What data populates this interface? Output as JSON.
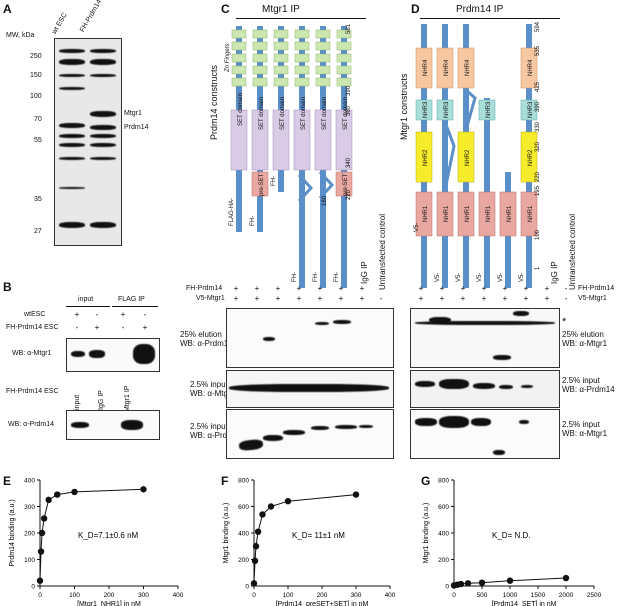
{
  "panels": {
    "A": {
      "letter": "A",
      "mw_label": "MW, kDa",
      "lane_labels": [
        "wt ESC",
        "FH-Prdm14 ESC"
      ],
      "markers": [
        "250",
        "150",
        "100",
        "70",
        "55",
        "35",
        "27"
      ],
      "band_labels": [
        "Mtgr1",
        "Prdm14"
      ]
    },
    "B": {
      "letter": "B",
      "group_input": "input",
      "group_ip": "FLAG IP",
      "row_wt": "wtESC",
      "row_fh": "FH-Prdm14 ESC",
      "signs_wt": [
        "+",
        "-",
        "+",
        "-"
      ],
      "signs_fh": [
        "-",
        "+",
        "-",
        "+"
      ],
      "wb1": "WB: α-Mtgr1",
      "sub_title": "FH-Prdm14 ESC",
      "sub_lanes": [
        "input",
        "IgG IP",
        "Mtgr1 IP"
      ],
      "wb2": "WB: α-Prdm14"
    },
    "C": {
      "letter": "C",
      "title": "Mtgr1 IP",
      "constructs_label": "Prdm14 constructs",
      "domains": [
        "Zn Fingers",
        "SET domain",
        "pre-SET"
      ],
      "tags": [
        "FLAG-HA-",
        "FH-"
      ],
      "numbers": [
        "561",
        "390",
        "360",
        "340",
        "220",
        "180"
      ],
      "untransfected": "Untransfected control",
      "igg": "IgG IP",
      "row1_label": "FH-Prdm14",
      "row2_label": "V5-Mtgr1",
      "row1": [
        "+",
        "+",
        "+",
        "+",
        "+",
        "+",
        "+",
        "-"
      ],
      "row2": [
        "+",
        "+",
        "+",
        "+",
        "+",
        "+",
        "+",
        "-"
      ],
      "blot1_label": [
        "25% elution",
        "WB: α-Prdm14"
      ],
      "blot2_label": [
        "2.5% input",
        "WB: α-Mtgr1"
      ],
      "blot3_label": [
        "2.5% input",
        "WB: α-Prdm14"
      ]
    },
    "D": {
      "letter": "D",
      "title": "Prdm14 IP",
      "constructs_label": "Mtgr1 constructs",
      "domains": [
        "NHR4",
        "NHR3",
        "NHR2",
        "NHR1"
      ],
      "tag": "V5-",
      "numbers": [
        "594",
        "535",
        "425",
        "390",
        "330",
        "320",
        "195",
        "220",
        "100",
        "1"
      ],
      "untransfected": "Untransfected control",
      "igg": "IgG IP",
      "row1_label": "FH-Prdm14",
      "row2_label": "V5-Mtgr1",
      "row1": [
        "+",
        "+",
        "+",
        "+",
        "+",
        "+",
        "+",
        "-"
      ],
      "row2": [
        "+",
        "+",
        "+",
        "+",
        "+",
        "+",
        "+",
        "-"
      ],
      "blot1_label": [
        "25% elution",
        "WB: α-Mtgr1"
      ],
      "blot1_mark": "*",
      "blot2_label": [
        "2.5% input",
        "WB: α-Prdm14"
      ],
      "blot3_label": [
        "2.5% input",
        "WB: α-Mtgr1"
      ]
    }
  },
  "chart_data": [
    {
      "panel": "E",
      "type": "scatter",
      "ylabel": "Prdm14 binding (a.u.)",
      "xlabel": "[Mtgr1_NHR1] in nM",
      "annotation": "K_D=7.1±0.6 nM",
      "xlim": [
        0,
        400
      ],
      "ylim": [
        0,
        400
      ],
      "xticks": [
        0,
        100,
        200,
        300,
        400
      ],
      "yticks": [
        0,
        100,
        200,
        300,
        400
      ],
      "x": [
        0,
        3,
        6,
        12,
        25,
        50,
        100,
        300
      ],
      "y": [
        20,
        130,
        200,
        255,
        325,
        345,
        355,
        365
      ]
    },
    {
      "panel": "F",
      "type": "scatter",
      "ylabel": "Mtgr1 binding (a.u.)",
      "xlabel": "[Prdm14_preSET+SET] in nM",
      "annotation": "K_D= 11±1 nM",
      "xlim": [
        0,
        400
      ],
      "ylim": [
        0,
        800
      ],
      "xticks": [
        0,
        100,
        200,
        300,
        400
      ],
      "yticks": [
        0,
        200,
        400,
        600,
        800
      ],
      "x": [
        0,
        3,
        6,
        12,
        25,
        50,
        100,
        300
      ],
      "y": [
        20,
        190,
        300,
        410,
        540,
        600,
        640,
        690
      ]
    },
    {
      "panel": "G",
      "type": "scatter",
      "ylabel": "Mtgr1 binding (a.u.)",
      "xlabel": "[Prdm14_SET] in nM",
      "annotation": "K_D= N.D.",
      "xlim": [
        0,
        2500
      ],
      "ylim": [
        0,
        800
      ],
      "xticks": [
        0,
        500,
        1000,
        1500,
        2000,
        2500
      ],
      "yticks": [
        0,
        200,
        400,
        600,
        800
      ],
      "x": [
        0,
        60,
        125,
        250,
        500,
        1000,
        2000
      ],
      "y": [
        5,
        10,
        15,
        20,
        25,
        40,
        60
      ]
    }
  ]
}
